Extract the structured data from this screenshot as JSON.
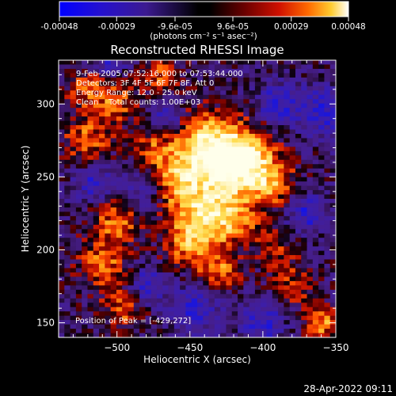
{
  "colorbar": {
    "tick_labels": [
      "-0.00048",
      "-0.00029",
      "-9.6e-05",
      "9.6e-05",
      "0.00029",
      "0.00048"
    ],
    "ticks": [
      -0.00048,
      -0.00029,
      -9.6e-05,
      9.6e-05,
      0.00029,
      0.00048
    ],
    "range": [
      -0.00048,
      0.00048
    ],
    "units_label": "(photons cm⁻² s⁻¹ asec⁻²)",
    "colors": [
      "#0000ff",
      "#2010c8",
      "#3a1a8c",
      "#000000",
      "#5a0000",
      "#b00000",
      "#ff3000",
      "#ff8c00",
      "#ffd040",
      "#ffffff"
    ]
  },
  "chart_data": {
    "type": "heatmap",
    "title": "Reconstructed RHESSI Image",
    "xlabel": "Heliocentric X (arcsec)",
    "ylabel": "Heliocentric Y (arcsec)",
    "xlim": [
      -540,
      -350
    ],
    "ylim": [
      140,
      330
    ],
    "xticks": [
      -500,
      -450,
      -400,
      -350
    ],
    "yticks": [
      150,
      200,
      250,
      300
    ],
    "xtick_labels": [
      "−500",
      "−450",
      "−400",
      "−350"
    ],
    "ytick_labels": [
      "150",
      "200",
      "250",
      "300"
    ],
    "annotations": [
      "9-Feb-2005 07:52:16.000 to 07:53:44.000",
      "Detectors: 3F 4F 5F 6F 7F 8F, Att 0",
      "Energy Range: 12.0 - 25.0 keV",
      "Clean    Total counts: 1.00E+03"
    ],
    "peak_label": "Position of Peak = [-429,272]",
    "peak_position": [
      -429,
      272
    ],
    "grid_cols": 48,
    "grid_rows": 64,
    "seed": 20050209
  },
  "footer": {
    "timestamp": "28-Apr-2022 09:11"
  }
}
